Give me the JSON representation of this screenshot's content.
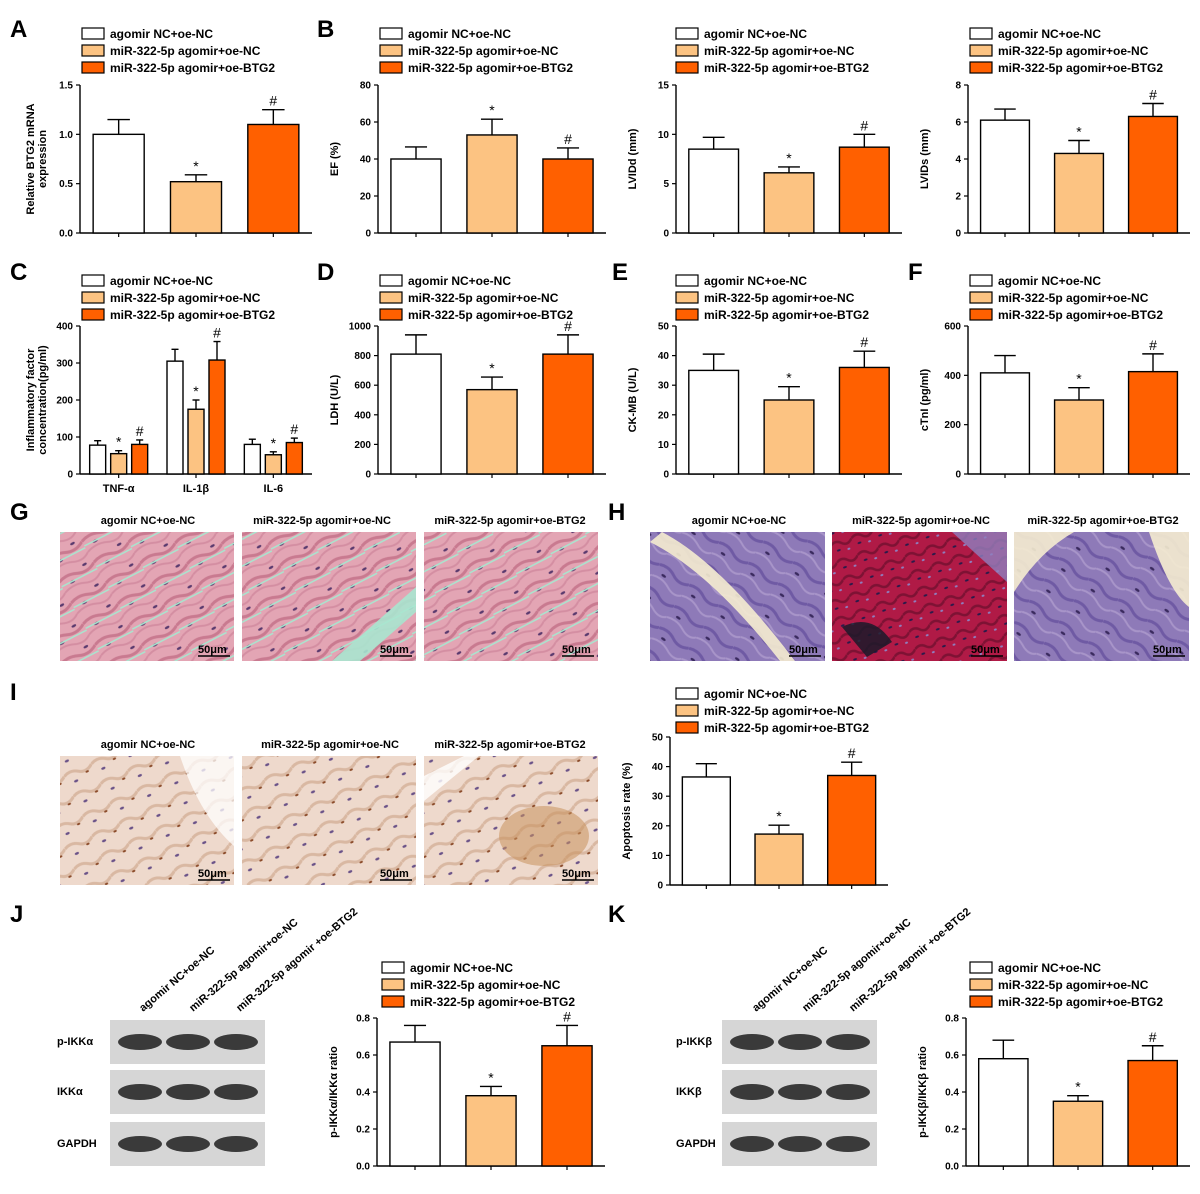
{
  "legend": [
    "agomir NC+oe-NC",
    "miR-322-5p agomir+oe-NC",
    "miR-322-5p agomir+oe-BTG2"
  ],
  "colors": {
    "g1": "#ffffff",
    "g2": "#fcc382",
    "g3": "#ff6000",
    "stroke": "#000000"
  },
  "panels": {
    "A": "A",
    "B": "B",
    "C": "C",
    "D": "D",
    "E": "E",
    "F": "F",
    "G": "G",
    "H": "H",
    "I": "I",
    "J": "J",
    "K": "K"
  },
  "scale_bar": "50μm",
  "image_titles": [
    "agomir NC+oe-NC",
    "miR-322-5p agomir+oe-NC",
    "miR-322-5p agomir+oe-BTG2"
  ],
  "blots": {
    "J": {
      "lanes": [
        "agomir NC+oe-NC",
        "miR-322-5p agomir+oe-NC",
        "miR-322-5p agomir +oe-BTG2"
      ],
      "rows": [
        "p-IKKα",
        "IKKα",
        "GAPDH"
      ]
    },
    "K": {
      "lanes": [
        "agomir NC+oe-NC",
        "miR-322-5p agomir+oe-NC",
        "miR-322-5p agomir +oe-BTG2"
      ],
      "rows": [
        "p-IKKβ",
        "IKKβ",
        "GAPDH"
      ]
    }
  },
  "chart_data": [
    {
      "id": "A",
      "type": "bar",
      "ylabel": [
        "Relative BTG2 mRNA",
        "expression"
      ],
      "ylim": [
        0,
        1.5
      ],
      "ticks": [
        "0.0",
        "0.5",
        "1.0",
        "1.5"
      ],
      "values": [
        1.0,
        0.52,
        1.1
      ],
      "errors": [
        0.15,
        0.07,
        0.15
      ],
      "sig": [
        "",
        "*",
        "#"
      ]
    },
    {
      "id": "B1",
      "type": "bar",
      "ylabel": [
        "EF (%)"
      ],
      "ylim": [
        0,
        80
      ],
      "ticks": [
        "0",
        "20",
        "40",
        "60",
        "80"
      ],
      "values": [
        40,
        53,
        40
      ],
      "errors": [
        6.5,
        8.5,
        6
      ],
      "sig": [
        "",
        "*",
        "#"
      ]
    },
    {
      "id": "B2",
      "type": "bar",
      "ylabel": [
        "LVIDd (mm)"
      ],
      "ylim": [
        0,
        15
      ],
      "ticks": [
        "0",
        "5",
        "10",
        "15"
      ],
      "values": [
        8.5,
        6.1,
        8.7
      ],
      "errors": [
        1.2,
        0.6,
        1.3
      ],
      "sig": [
        "",
        "*",
        "#"
      ]
    },
    {
      "id": "B3",
      "type": "bar",
      "ylabel": [
        "LVIDs (mm)"
      ],
      "ylim": [
        0,
        8
      ],
      "ticks": [
        "0",
        "2",
        "4",
        "6",
        "8"
      ],
      "values": [
        6.1,
        4.3,
        6.3
      ],
      "errors": [
        0.6,
        0.7,
        0.7
      ],
      "sig": [
        "",
        "*",
        "#"
      ]
    },
    {
      "id": "C",
      "type": "bar",
      "ylabel": [
        "Inflammatory factor",
        "concentration(pg/ml)"
      ],
      "ylim": [
        0,
        400
      ],
      "ticks": [
        "0",
        "100",
        "200",
        "300",
        "400"
      ],
      "categories": [
        "TNF-α",
        "IL-1β",
        "IL-6"
      ],
      "series": [
        {
          "name": "agomir NC+oe-NC",
          "values": [
            78,
            305,
            80
          ],
          "errors": [
            12,
            32,
            14
          ]
        },
        {
          "name": "miR-322-5p agomir+oe-NC",
          "values": [
            55,
            175,
            52
          ],
          "errors": [
            8,
            25,
            8
          ]
        },
        {
          "name": "miR-322-5p agomir+oe-BTG2",
          "values": [
            80,
            308,
            85
          ],
          "errors": [
            12,
            50,
            12
          ]
        }
      ],
      "sig": [
        "",
        "*",
        "#"
      ]
    },
    {
      "id": "D",
      "type": "bar",
      "ylabel": [
        "LDH (U/L)"
      ],
      "ylim": [
        0,
        1000
      ],
      "ticks": [
        "0",
        "200",
        "400",
        "600",
        "800",
        "1000"
      ],
      "values": [
        810,
        570,
        810
      ],
      "errors": [
        130,
        85,
        130
      ],
      "sig": [
        "",
        "*",
        "#"
      ]
    },
    {
      "id": "E",
      "type": "bar",
      "ylabel": [
        "CK-MB (U/L)"
      ],
      "ylim": [
        0,
        50
      ],
      "ticks": [
        "0",
        "10",
        "20",
        "30",
        "40",
        "50"
      ],
      "values": [
        35,
        25,
        36
      ],
      "errors": [
        5.5,
        4.5,
        5.5
      ],
      "sig": [
        "",
        "*",
        "#"
      ]
    },
    {
      "id": "F",
      "type": "bar",
      "ylabel": [
        "cTnI (pg/ml)"
      ],
      "ylim": [
        0,
        600
      ],
      "ticks": [
        "0",
        "200",
        "400",
        "600"
      ],
      "values": [
        410,
        300,
        415
      ],
      "errors": [
        70,
        50,
        72
      ],
      "sig": [
        "",
        "*",
        "#"
      ]
    },
    {
      "id": "I",
      "type": "bar",
      "ylabel": [
        "Apoptosis rate (%)"
      ],
      "ylim": [
        0,
        50
      ],
      "ticks": [
        "0",
        "10",
        "20",
        "30",
        "40",
        "50"
      ],
      "values": [
        36.5,
        17.2,
        37
      ],
      "errors": [
        4.5,
        3,
        4.5
      ],
      "sig": [
        "",
        "*",
        "#"
      ]
    },
    {
      "id": "J",
      "type": "bar",
      "ylabel": [
        "p-IKKα/IKKα ratio"
      ],
      "ylim": [
        0,
        0.8
      ],
      "ticks": [
        "0.0",
        "0.2",
        "0.4",
        "0.6",
        "0.8"
      ],
      "values": [
        0.67,
        0.38,
        0.65
      ],
      "errors": [
        0.09,
        0.05,
        0.11
      ],
      "sig": [
        "",
        "*",
        "#"
      ]
    },
    {
      "id": "K",
      "type": "bar",
      "ylabel": [
        "p-IKKβ/IKKβ ratio"
      ],
      "ylim": [
        0,
        0.8
      ],
      "ticks": [
        "0.0",
        "0.2",
        "0.4",
        "0.6",
        "0.8"
      ],
      "values": [
        0.58,
        0.35,
        0.57
      ],
      "errors": [
        0.1,
        0.03,
        0.08
      ],
      "sig": [
        "",
        "*",
        "#"
      ]
    }
  ]
}
